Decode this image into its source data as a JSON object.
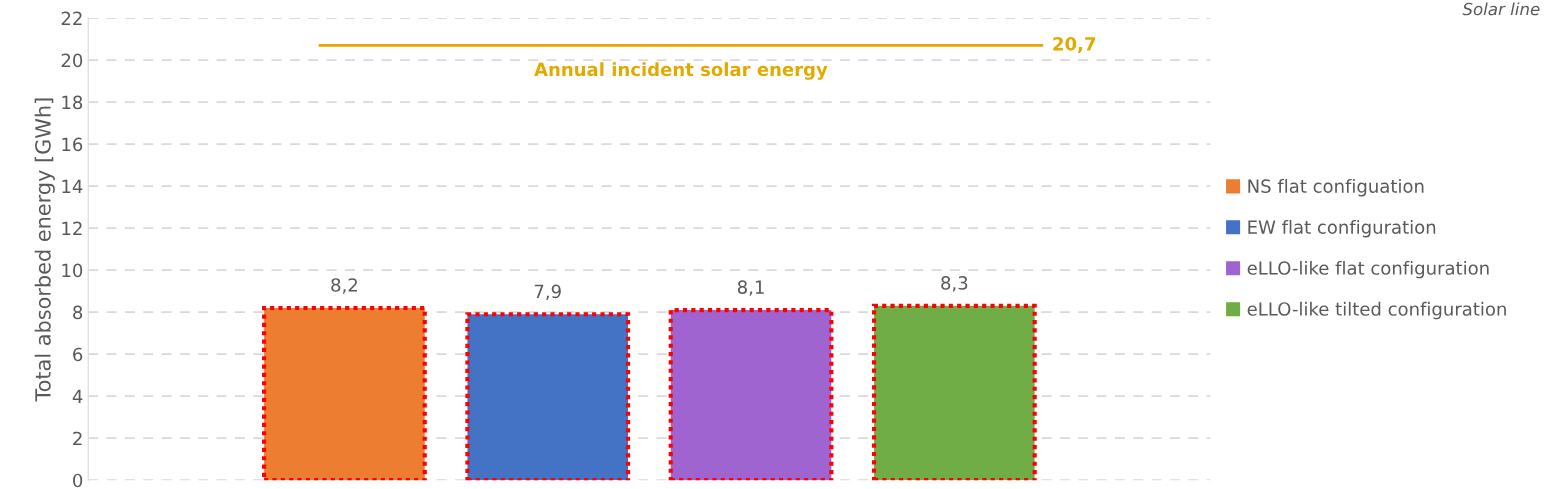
{
  "chart_data": {
    "type": "bar",
    "ylabel": "Total absorbed energy [GWh]",
    "categories": [
      null,
      null,
      null,
      null
    ],
    "series": [
      {
        "name": "NS flat configuation",
        "color": "#ed7d31",
        "values": [
          8.2,
          null,
          null,
          null
        ],
        "value_labels": [
          "8,2",
          null,
          null,
          null
        ]
      },
      {
        "name": "EW flat configuration",
        "color": "#4472c4",
        "values": [
          null,
          7.9,
          null,
          null
        ],
        "value_labels": [
          null,
          "7,9",
          null,
          null
        ]
      },
      {
        "name": "eLLO-like flat configuration",
        "color": "#a064d0",
        "values": [
          null,
          null,
          8.1,
          null
        ],
        "value_labels": [
          null,
          null,
          "8,1",
          null
        ]
      },
      {
        "name": "eLLO-like tilted configuration",
        "color": "#70ad47",
        "values": [
          null,
          null,
          null,
          8.3
        ],
        "value_labels": [
          null,
          null,
          null,
          "8,3"
        ]
      }
    ],
    "ylim": [
      0,
      22
    ],
    "yticks": [
      0,
      2,
      4,
      6,
      8,
      10,
      12,
      14,
      16,
      18,
      20,
      22
    ],
    "grid": "y",
    "legend": "right",
    "tick_labels": "y",
    "ref_lines": [
      {
        "axis": "y",
        "value": 20.7,
        "label": "Annual incident solar energy",
        "color": "#e1aa00"
      }
    ],
    "annotations": [
      "20,7",
      "Solar line"
    ]
  }
}
